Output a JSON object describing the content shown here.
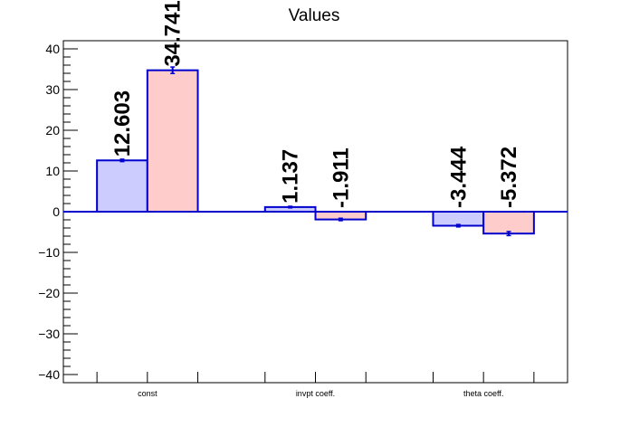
{
  "chart_data": {
    "type": "bar",
    "title": "Values",
    "categories": [
      "const",
      "invpt coeff.",
      "theta coeff."
    ],
    "series": [
      {
        "values": [
          12.603,
          1.137,
          -3.444
        ],
        "errors": [
          0.3,
          0.2,
          0.3
        ],
        "fill": "#ccccff"
      },
      {
        "values": [
          34.741,
          -1.911,
          -5.372
        ],
        "errors": [
          0.8,
          0.3,
          0.5
        ],
        "fill": "#ffcccc"
      }
    ],
    "data_labels": [
      [
        "12.603",
        "1.137",
        "-3.444"
      ],
      [
        "34.741",
        "-1.911",
        "-5.372"
      ]
    ],
    "ylim": [
      -42,
      42
    ],
    "yticks": [
      -40,
      -30,
      -20,
      -10,
      0,
      10,
      20,
      30,
      40
    ],
    "ytick_labels": [
      "−40",
      "−30",
      "−20",
      "−10",
      "0",
      "10",
      "20",
      "30",
      "40"
    ],
    "xlabel": "",
    "ylabel": "",
    "grid": false,
    "legend": false,
    "bar_edge_color": "#0000cc",
    "zero_line_color": "#0000cc"
  }
}
